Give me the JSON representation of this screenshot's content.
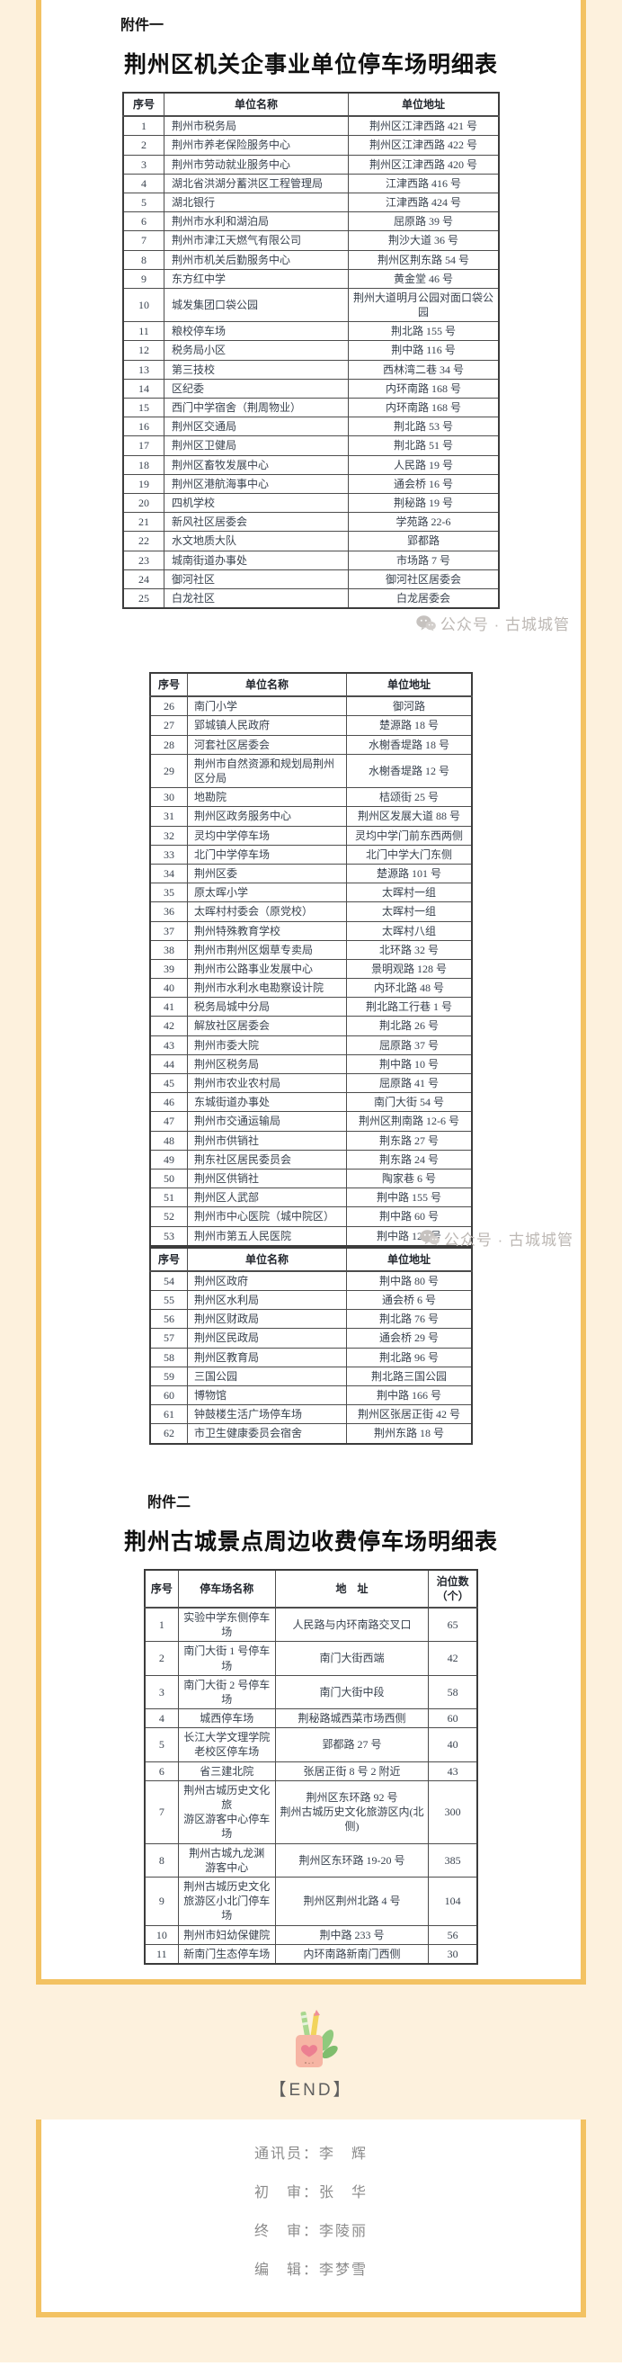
{
  "page": {
    "colors": {
      "background_cream": "#fdf1dd",
      "frame_yellow": "#f3c262",
      "table_text": "#39424e",
      "credit_gray": "#8b8b8b",
      "watermark_gray": "#bdb8b4"
    },
    "attachment1": {
      "label": "附件一",
      "title": "荆州区机关企事业单位停车场明细表"
    },
    "attachment2": {
      "label": "附件二",
      "title": "荆州古城景点周边收费停车场明细表"
    },
    "watermark": {
      "text": "公众号 · 古城城管",
      "icon": "wechat-icon"
    },
    "end": {
      "label": "【END】",
      "illustration": "pencil-holder-illustration"
    },
    "credits": {
      "lines": [
        "通讯员：李　辉",
        "初　审：张　华",
        "终　审：李陵丽",
        "编　辑：李梦雪"
      ]
    }
  },
  "tables": {
    "t1": {
      "headers": [
        "序号",
        "单位名称",
        "单位地址"
      ],
      "rows": [
        [
          "1",
          "荆州市税务局",
          "荆州区江津西路 421 号"
        ],
        [
          "2",
          "荆州市养老保险服务中心",
          "荆州区江津西路 422 号"
        ],
        [
          "3",
          "荆州市劳动就业服务中心",
          "荆州区江津西路 420 号"
        ],
        [
          "4",
          "湖北省洪湖分蓄洪区工程管理局",
          "江津西路 416 号"
        ],
        [
          "5",
          "湖北银行",
          "江津西路 424 号"
        ],
        [
          "6",
          "荆州市水利和湖泊局",
          "屈原路 39 号"
        ],
        [
          "7",
          "荆州市津江天燃气有限公司",
          "荆沙大道 36 号"
        ],
        [
          "8",
          "荆州市机关后勤服务中心",
          "荆州区荆东路 54 号"
        ],
        [
          "9",
          "东方红中学",
          "黄金堂 46 号"
        ],
        [
          "10",
          "城发集团口袋公园",
          "荆州大道明月公园对面口袋公园"
        ],
        [
          "11",
          "粮校停车场",
          "荆北路 155 号"
        ],
        [
          "12",
          "税务局小区",
          "荆中路 116 号"
        ],
        [
          "13",
          "第三技校",
          "西林湾二巷 34 号"
        ],
        [
          "14",
          "区纪委",
          "内环南路 168 号"
        ],
        [
          "15",
          "西门中学宿舍（荆周物业）",
          "内环南路 168 号"
        ],
        [
          "16",
          "荆州区交通局",
          "荆北路 53 号"
        ],
        [
          "17",
          "荆州区卫健局",
          "荆北路 51 号"
        ],
        [
          "18",
          "荆州区畜牧发展中心",
          "人民路 19 号"
        ],
        [
          "19",
          "荆州区港航海事中心",
          "通会桥 16 号"
        ],
        [
          "20",
          "四机学校",
          "荆秘路 19 号"
        ],
        [
          "21",
          "新风社区居委会",
          "学苑路 22-6"
        ],
        [
          "22",
          "水文地质大队",
          "郢都路"
        ],
        [
          "23",
          "城南街道办事处",
          "市场路 7 号"
        ],
        [
          "24",
          "御河社区",
          "御河社区居委会"
        ],
        [
          "25",
          "白龙社区",
          "白龙居委会"
        ]
      ]
    },
    "t2": {
      "headers": [
        "序号",
        "单位名称",
        "单位地址"
      ],
      "rows": [
        [
          "26",
          "南门小学",
          "御河路"
        ],
        [
          "27",
          "郢城镇人民政府",
          "楚源路 18 号"
        ],
        [
          "28",
          "河套社区居委会",
          "水榭香堤路 18 号"
        ],
        [
          "29",
          "荆州市自然资源和规划局荆州区分局",
          "水榭香堤路 12 号"
        ],
        [
          "30",
          "地勘院",
          "桔颂街 25 号"
        ],
        [
          "31",
          "荆州区政务服务中心",
          "荆州区发展大道 88 号"
        ],
        [
          "32",
          "灵均中学停车场",
          "灵均中学门前东西两侧"
        ],
        [
          "33",
          "北门中学停车场",
          "北门中学大门东侧"
        ],
        [
          "34",
          "荆州区委",
          "楚源路 101 号"
        ],
        [
          "35",
          "原太晖小学",
          "太晖村一组"
        ],
        [
          "36",
          "太晖村村委会（原党校）",
          "太晖村一组"
        ],
        [
          "37",
          "荆州特殊教育学校",
          "太晖村八组"
        ],
        [
          "38",
          "荆州市荆州区烟草专卖局",
          "北环路 32 号"
        ],
        [
          "39",
          "荆州市公路事业发展中心",
          "景明观路 128 号"
        ],
        [
          "40",
          "荆州市水利水电勘察设计院",
          "内环北路 48 号"
        ],
        [
          "41",
          "税务局城中分局",
          "荆北路工行巷 1 号"
        ],
        [
          "42",
          "解放社区居委会",
          "荆北路 26 号"
        ],
        [
          "43",
          "荆州市委大院",
          "屈原路 37 号"
        ],
        [
          "44",
          "荆州区税务局",
          "荆中路 10 号"
        ],
        [
          "45",
          "荆州市农业农村局",
          "屈原路 41 号"
        ],
        [
          "46",
          "东城街道办事处",
          "南门大街 54 号"
        ],
        [
          "47",
          "荆州市交通运输局",
          "荆州区荆南路 12-6 号"
        ],
        [
          "48",
          "荆州市供销社",
          "荆东路 27 号"
        ],
        [
          "49",
          "荆东社区居民委员会",
          "荆东路 24 号"
        ],
        [
          "50",
          "荆州区供销社",
          "陶家巷 6 号"
        ],
        [
          "51",
          "荆州区人武部",
          "荆中路 155 号"
        ],
        [
          "52",
          "荆州市中心医院（城中院区）",
          "荆中路 60 号"
        ],
        [
          "53",
          "荆州市第五人民医院",
          "荆中路 120 号"
        ]
      ]
    },
    "t3": {
      "headers": [
        "序号",
        "单位名称",
        "单位地址"
      ],
      "rows": [
        [
          "54",
          "荆州区政府",
          "荆中路 80 号"
        ],
        [
          "55",
          "荆州区水利局",
          "通会桥 6 号"
        ],
        [
          "56",
          "荆州区财政局",
          "荆北路 76 号"
        ],
        [
          "57",
          "荆州区民政局",
          "通会桥 29 号"
        ],
        [
          "58",
          "荆州区教育局",
          "荆北路 96 号"
        ],
        [
          "59",
          "三国公园",
          "荆北路三国公园"
        ],
        [
          "60",
          "博物馆",
          "荆中路 166 号"
        ],
        [
          "61",
          "钟鼓楼生活广场停车场",
          "荆州区张居正街 42 号"
        ],
        [
          "62",
          "市卫生健康委员会宿舍",
          "荆州东路 18 号"
        ]
      ]
    },
    "t4": {
      "headers": [
        "序号",
        "停车场名称",
        "地　址",
        "泊位数\n（个）"
      ],
      "rows": [
        [
          "1",
          "实验中学东侧停车场",
          "人民路与内环南路交叉口",
          "65"
        ],
        [
          "2",
          "南门大街 1 号停车场",
          "南门大街西端",
          "42"
        ],
        [
          "3",
          "南门大街 2 号停车场",
          "南门大街中段",
          "58"
        ],
        [
          "4",
          "城西停车场",
          "荆秘路城西菜市场西侧",
          "60"
        ],
        [
          "5",
          "长江大学文理学院\n老校区停车场",
          "郢都路 27 号",
          "40"
        ],
        [
          "6",
          "省三建北院",
          "张居正街 8 号 2 附近",
          "43"
        ],
        [
          "7",
          "荆州古城历史文化旅\n游区游客中心停车场",
          "荆州区东环路 92 号\n荆州古城历史文化旅游区内(北侧)",
          "300"
        ],
        [
          "8",
          "荆州古城九龙渊\n游客中心",
          "荆州区东环路 19-20 号",
          "385"
        ],
        [
          "9",
          "荆州古城历史文化\n旅游区小北门停车场",
          "荆州区荆州北路 4 号",
          "104"
        ],
        [
          "10",
          "荆州市妇幼保健院",
          "荆中路 233 号",
          "56"
        ],
        [
          "11",
          "新南门生态停车场",
          "内环南路新南门西侧",
          "30"
        ]
      ]
    }
  }
}
